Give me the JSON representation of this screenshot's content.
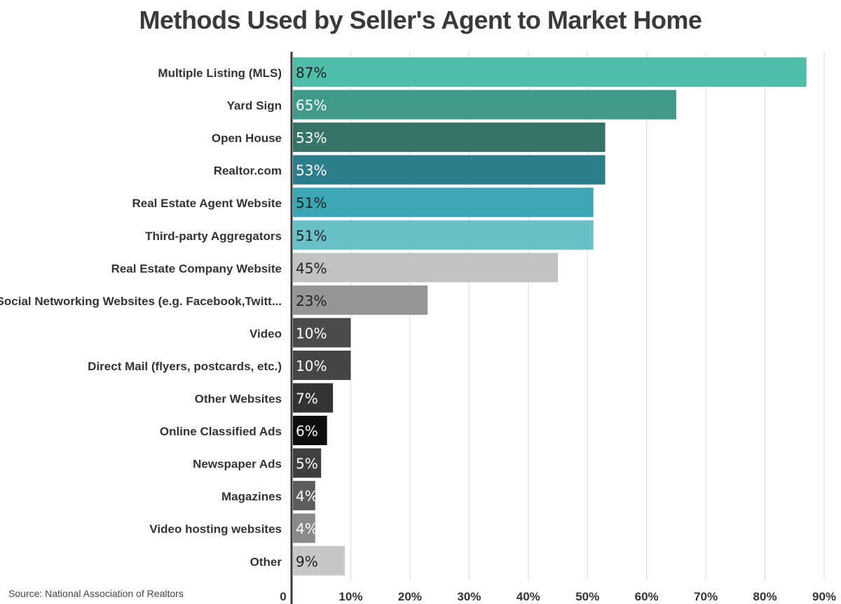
{
  "source": "Source:  National Association of Realtors",
  "chart_data": {
    "type": "bar",
    "orientation": "horizontal",
    "title": "Methods Used by Seller's Agent to Market Home",
    "categories": [
      "Multiple Listing (MLS)",
      "Yard Sign",
      "Open House",
      "Realtor.com",
      "Real Estate Agent Website",
      "Third-party Aggregators",
      "Real Estate Company Website",
      "Social Networking Websites (e.g. Facebook,Twitt...",
      "Video",
      "Direct Mail (flyers, postcards, etc.)",
      "Other Websites",
      "Online Classified Ads",
      "Newspaper Ads",
      "Magazines",
      "Video hosting websites",
      "Other"
    ],
    "values": [
      87,
      65,
      53,
      53,
      51,
      51,
      45,
      23,
      10,
      10,
      7,
      6,
      5,
      4,
      4,
      9
    ],
    "value_labels": [
      "87%",
      "65%",
      "53%",
      "53%",
      "51%",
      "51%",
      "45%",
      "23%",
      "10%",
      "10%",
      "7%",
      "6%",
      "5%",
      "4%",
      "4%",
      "9%"
    ],
    "colors": [
      "#4fbea9",
      "#41998a",
      "#377468",
      "#2c7e8a",
      "#3ba7b4",
      "#6ac0c9",
      "#c2c2c2",
      "#969696",
      "#4a4a4a",
      "#454545",
      "#333333",
      "#0d0d0d",
      "#3f3f3f",
      "#5c5c5c",
      "#8a8a8a",
      "#c7c7c7"
    ],
    "label_colors": [
      "#222222",
      "#ffffff",
      "#ffffff",
      "#ffffff",
      "#222222",
      "#222222",
      "#222222",
      "#222222",
      "#ffffff",
      "#ffffff",
      "#ffffff",
      "#ffffff",
      "#ffffff",
      "#ffffff",
      "#ffffff",
      "#222222"
    ],
    "xlim": [
      0,
      90
    ],
    "xticks": [
      0,
      10,
      20,
      30,
      40,
      50,
      60,
      70,
      80,
      90
    ],
    "xtick_labels": [
      "0",
      "10%",
      "20%",
      "30%",
      "40%",
      "50%",
      "60%",
      "70%",
      "80%",
      "90%"
    ],
    "grid": true
  }
}
